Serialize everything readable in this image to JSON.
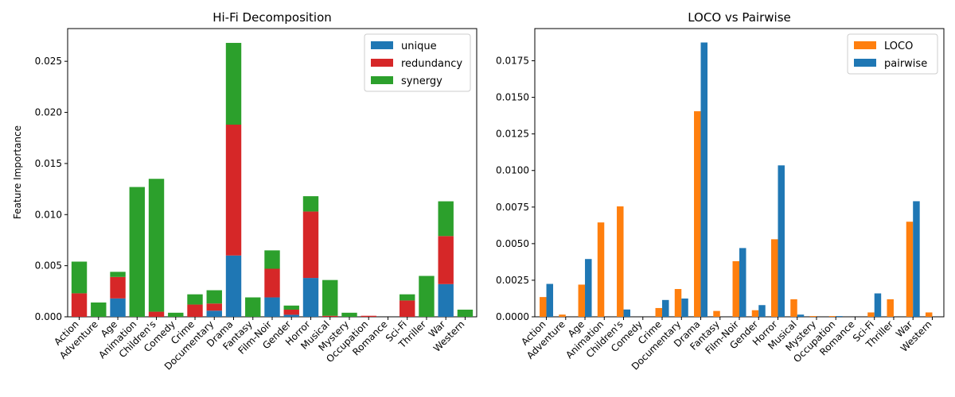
{
  "colors": {
    "unique": "#1f77b4",
    "redundancy": "#d62728",
    "synergy": "#2ca02c",
    "loco": "#ff7f0e",
    "pairwise": "#1f77b4"
  },
  "chart_data": [
    {
      "type": "bar",
      "stacked": true,
      "title": "Hi-Fi Decomposition",
      "xlabel": "",
      "ylabel": "Feature Importance",
      "ylim": [
        0,
        0.0282
      ],
      "yticks": [
        "0.000",
        "0.005",
        "0.010",
        "0.015",
        "0.020",
        "0.025"
      ],
      "ytick_values": [
        0,
        0.005,
        0.01,
        0.015,
        0.02,
        0.025
      ],
      "legend_position": "top-right",
      "categories": [
        "Action",
        "Adventure",
        "Age",
        "Animation",
        "Children's",
        "Comedy",
        "Crime",
        "Documentary",
        "Drama",
        "Fantasy",
        "Film-Noir",
        "Gender",
        "Horror",
        "Musical",
        "Mystery",
        "Occupation",
        "Romance",
        "Sci-Fi",
        "Thriller",
        "War",
        "Western"
      ],
      "series": [
        {
          "name": "unique",
          "color_key": "unique",
          "values": [
            0,
            0,
            0.0018,
            0,
            0,
            0,
            0,
            0.0006,
            0.006,
            0,
            0.0019,
            0.0002,
            0.0038,
            0,
            0,
            0,
            0,
            0,
            0,
            0.0032,
            0
          ]
        },
        {
          "name": "redundancy",
          "color_key": "redundancy",
          "values": [
            0.0023,
            0,
            0.0021,
            0,
            0.0005,
            0,
            0.0012,
            0.0007,
            0.0128,
            0,
            0.0028,
            0.0005,
            0.0065,
            0.0001,
            0,
            0.0001,
            0,
            0.0016,
            0,
            0.0047,
            0
          ]
        },
        {
          "name": "synergy",
          "color_key": "synergy",
          "values": [
            0.0031,
            0.0014,
            0.0005,
            0.0127,
            0.013,
            0.0004,
            0.001,
            0.0013,
            0.008,
            0.0019,
            0.0018,
            0.0004,
            0.0015,
            0.0035,
            0.0004,
            0,
            0,
            0.0006,
            0.004,
            0.0034,
            0.0007
          ]
        }
      ]
    },
    {
      "type": "bar",
      "stacked": false,
      "title": "LOCO vs Pairwise",
      "xlabel": "",
      "ylabel": "",
      "ylim": [
        0,
        0.0197
      ],
      "yticks": [
        "0.0000",
        "0.0025",
        "0.0050",
        "0.0075",
        "0.0100",
        "0.0125",
        "0.0150",
        "0.0175"
      ],
      "ytick_values": [
        0,
        0.0025,
        0.005,
        0.0075,
        0.01,
        0.0125,
        0.015,
        0.0175
      ],
      "legend_position": "top-right",
      "categories": [
        "Action",
        "Adventure",
        "Age",
        "Animation",
        "Children's",
        "Comedy",
        "Crime",
        "Documentary",
        "Drama",
        "Fantasy",
        "Film-Noir",
        "Gender",
        "Horror",
        "Musical",
        "Mystery",
        "Occupation",
        "Romance",
        "Sci-Fi",
        "Thriller",
        "War",
        "Western"
      ],
      "series": [
        {
          "name": "LOCO",
          "color_key": "loco",
          "values": [
            0.00135,
            0.00015,
            0.0022,
            0.00645,
            0.00755,
            0,
            0.0006,
            0.0019,
            0.01405,
            0.0004,
            0.0038,
            0.00045,
            0.0053,
            0.0012,
            5e-05,
            5e-05,
            0,
            0.0003,
            0.0012,
            0.0065,
            0.0003
          ]
        },
        {
          "name": "pairwise",
          "color_key": "pairwise",
          "values": [
            0.00225,
            0,
            0.00395,
            0,
            0.0005,
            0,
            0.00115,
            0.00125,
            0.01875,
            0,
            0.0047,
            0.0008,
            0.01035,
            0.00015,
            0,
            5e-05,
            0,
            0.0016,
            0,
            0.0079,
            0
          ]
        }
      ]
    }
  ]
}
